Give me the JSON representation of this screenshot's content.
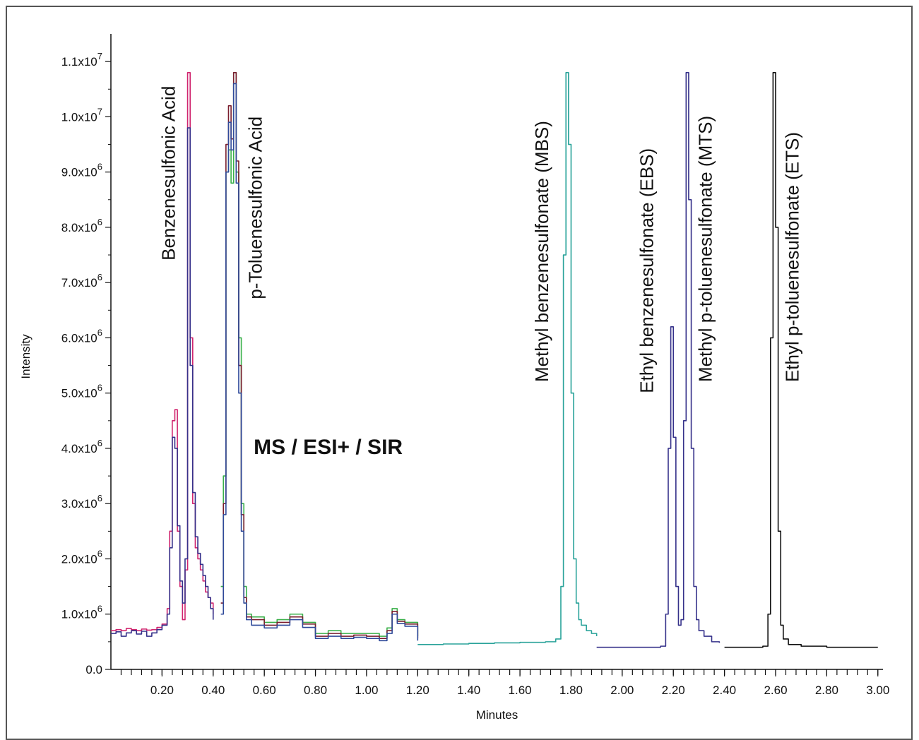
{
  "chart_data": {
    "type": "line",
    "title": "",
    "annotation": "MS / ESI+ / SIR",
    "xlabel": "Minutes",
    "ylabel": "Intensity",
    "xlim": [
      0.0,
      3.02
    ],
    "ylim": [
      0.0,
      11500000
    ],
    "x_ticks": [
      "0.20",
      "0.40",
      "0.60",
      "0.80",
      "1.00",
      "1.20",
      "1.40",
      "1.60",
      "1.80",
      "2.00",
      "2.20",
      "2.40",
      "2.60",
      "2.80",
      "3.00"
    ],
    "x_tick_values": [
      0.2,
      0.4,
      0.6,
      0.8,
      1.0,
      1.2,
      1.4,
      1.6,
      1.8,
      2.0,
      2.2,
      2.4,
      2.6,
      2.8,
      3.0
    ],
    "y_ticks": [
      {
        "value": 0,
        "mantissa": "0.0",
        "exp": ""
      },
      {
        "value": 1000000,
        "mantissa": "1.0x10",
        "exp": "6"
      },
      {
        "value": 2000000,
        "mantissa": "2.0x10",
        "exp": "6"
      },
      {
        "value": 3000000,
        "mantissa": "3.0x10",
        "exp": "6"
      },
      {
        "value": 4000000,
        "mantissa": "4.0x10",
        "exp": "6"
      },
      {
        "value": 5000000,
        "mantissa": "5.0x10",
        "exp": "6"
      },
      {
        "value": 6000000,
        "mantissa": "6.0x10",
        "exp": "6"
      },
      {
        "value": 7000000,
        "mantissa": "7.0x10",
        "exp": "6"
      },
      {
        "value": 8000000,
        "mantissa": "8.0x10",
        "exp": "6"
      },
      {
        "value": 9000000,
        "mantissa": "9.0x10",
        "exp": "6"
      },
      {
        "value": 10000000,
        "mantissa": "1.0x10",
        "exp": "7"
      },
      {
        "value": 11000000,
        "mantissa": "1.1x10",
        "exp": "7"
      }
    ],
    "peak_labels": [
      {
        "text": "Benzenesulfonic Acid",
        "x": 0.25,
        "y": 7400000
      },
      {
        "text": "p-Toluenesulfonic Acid",
        "x": 0.59,
        "y": 6700000
      },
      {
        "text": "Methyl benzenesulfonate (MBS)",
        "x": 1.71,
        "y": 5200000
      },
      {
        "text": "Ethyl benzenesulfonate (EBS)",
        "x": 2.12,
        "y": 5000000
      },
      {
        "text": "Methyl p-toluenesulfonate (MTS)",
        "x": 2.35,
        "y": 5200000
      },
      {
        "text": "Ethyl p-toluenesulfonate (ETS)",
        "x": 2.69,
        "y": 5200000
      }
    ],
    "series": [
      {
        "color": "#d0246e",
        "x": [
          0.0,
          0.02,
          0.04,
          0.06,
          0.08,
          0.1,
          0.12,
          0.14,
          0.16,
          0.18,
          0.2,
          0.22,
          0.23,
          0.24,
          0.25,
          0.26,
          0.27,
          0.28,
          0.29,
          0.3,
          0.31,
          0.32,
          0.33,
          0.34,
          0.35,
          0.36,
          0.37,
          0.38,
          0.39,
          0.4
        ],
        "y": [
          700000,
          720000,
          700000,
          740000,
          720000,
          700000,
          730000,
          710000,
          720000,
          760000,
          820000,
          1100000,
          2500000,
          4500000,
          4700000,
          2500000,
          1500000,
          900000,
          1800000,
          10800000,
          6000000,
          3000000,
          2200000,
          2000000,
          1800000,
          1600000,
          1400000,
          1300000,
          1200000,
          1000000
        ]
      },
      {
        "color": "#35318a",
        "x": [
          0.0,
          0.02,
          0.04,
          0.06,
          0.08,
          0.1,
          0.12,
          0.14,
          0.16,
          0.18,
          0.2,
          0.22,
          0.23,
          0.24,
          0.25,
          0.26,
          0.27,
          0.28,
          0.29,
          0.3,
          0.31,
          0.32,
          0.33,
          0.34,
          0.35,
          0.36,
          0.37,
          0.38,
          0.39,
          0.4
        ],
        "y": [
          650000,
          680000,
          600000,
          660000,
          700000,
          640000,
          690000,
          600000,
          660000,
          720000,
          800000,
          1000000,
          2200000,
          4200000,
          4000000,
          2600000,
          1600000,
          1200000,
          2000000,
          9800000,
          5500000,
          3200000,
          2400000,
          2100000,
          1900000,
          1700000,
          1500000,
          1300000,
          1100000,
          900000
        ]
      },
      {
        "color": "#3ab04a",
        "x": [
          0.43,
          0.44,
          0.45,
          0.46,
          0.47,
          0.48,
          0.49,
          0.5,
          0.51,
          0.52,
          0.53,
          0.55,
          0.6,
          0.65,
          0.7,
          0.75,
          0.8,
          0.85,
          0.9,
          0.95,
          1.0,
          1.05,
          1.08,
          1.1,
          1.12,
          1.15,
          1.2
        ],
        "y": [
          1500000,
          3500000,
          9000000,
          9400000,
          8800000,
          10800000,
          9000000,
          6000000,
          3000000,
          1500000,
          1000000,
          950000,
          850000,
          900000,
          1000000,
          850000,
          650000,
          700000,
          650000,
          650000,
          650000,
          600000,
          750000,
          1100000,
          900000,
          850000,
          600000
        ]
      },
      {
        "color": "#7a1e2e",
        "x": [
          0.43,
          0.44,
          0.45,
          0.46,
          0.47,
          0.48,
          0.49,
          0.5,
          0.51,
          0.52,
          0.53,
          0.55,
          0.6,
          0.65,
          0.7,
          0.75,
          0.8,
          0.85,
          0.9,
          0.95,
          1.0,
          1.05,
          1.08,
          1.1,
          1.12,
          1.15,
          1.2
        ],
        "y": [
          1200000,
          3000000,
          9500000,
          10200000,
          9600000,
          10800000,
          9200000,
          5500000,
          2800000,
          1300000,
          950000,
          900000,
          800000,
          850000,
          950000,
          820000,
          600000,
          650000,
          600000,
          620000,
          600000,
          560000,
          700000,
          1050000,
          870000,
          820000,
          560000
        ]
      },
      {
        "color": "#2f4a9a",
        "x": [
          0.43,
          0.44,
          0.45,
          0.46,
          0.47,
          0.48,
          0.49,
          0.5,
          0.51,
          0.52,
          0.53,
          0.55,
          0.6,
          0.65,
          0.7,
          0.75,
          0.8,
          0.85,
          0.9,
          0.95,
          1.0,
          1.05,
          1.08,
          1.1,
          1.12,
          1.15,
          1.2
        ],
        "y": [
          1000000,
          2800000,
          9000000,
          9900000,
          9400000,
          10600000,
          8800000,
          5000000,
          2500000,
          1200000,
          900000,
          800000,
          750000,
          800000,
          900000,
          760000,
          560000,
          600000,
          560000,
          580000,
          560000,
          520000,
          650000,
          1000000,
          830000,
          780000,
          520000
        ]
      },
      {
        "color": "#2aa39a",
        "x": [
          1.2,
          1.3,
          1.4,
          1.5,
          1.6,
          1.7,
          1.74,
          1.76,
          1.77,
          1.78,
          1.79,
          1.8,
          1.81,
          1.82,
          1.83,
          1.84,
          1.86,
          1.88,
          1.9
        ],
        "y": [
          450000,
          460000,
          470000,
          480000,
          490000,
          500000,
          550000,
          1500000,
          7500000,
          10800000,
          9500000,
          5000000,
          2000000,
          1200000,
          900000,
          800000,
          700000,
          650000,
          600000
        ]
      },
      {
        "color": "#35318a",
        "x": [
          1.9,
          2.0,
          2.1,
          2.15,
          2.17,
          2.18,
          2.19,
          2.2,
          2.21,
          2.22,
          2.23,
          2.24,
          2.25,
          2.26,
          2.27,
          2.28,
          2.29,
          2.3,
          2.32,
          2.35,
          2.38
        ],
        "y": [
          400000,
          400000,
          400000,
          420000,
          1000000,
          4000000,
          6200000,
          4200000,
          1500000,
          800000,
          900000,
          4500000,
          10800000,
          8500000,
          4000000,
          1500000,
          900000,
          700000,
          600000,
          500000,
          480000
        ]
      },
      {
        "color": "#111111",
        "x": [
          2.4,
          2.45,
          2.5,
          2.55,
          2.57,
          2.58,
          2.59,
          2.6,
          2.61,
          2.62,
          2.63,
          2.65,
          2.7,
          2.8,
          3.0
        ],
        "y": [
          400000,
          400000,
          400000,
          420000,
          1000000,
          6000000,
          10800000,
          8000000,
          2500000,
          800000,
          550000,
          450000,
          420000,
          400000,
          400000
        ]
      }
    ]
  }
}
